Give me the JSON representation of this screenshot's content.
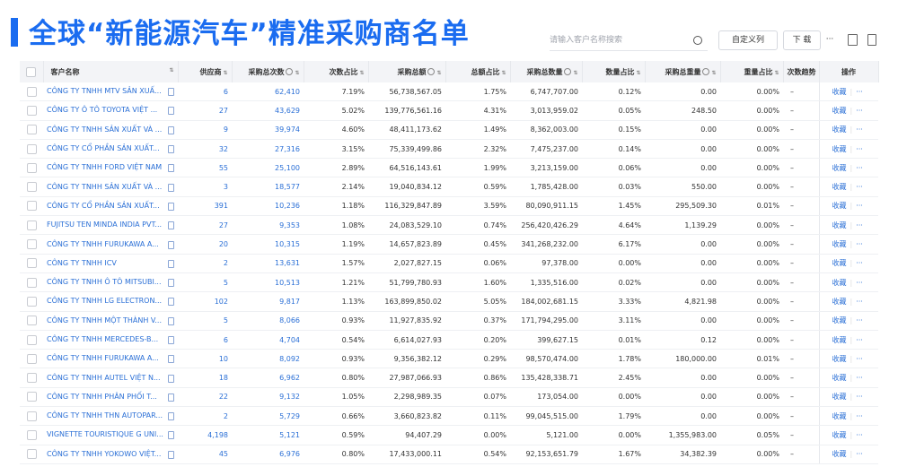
{
  "header": {
    "title": "全球“新能源汽车”精准采购商名单",
    "search_placeholder": "请输入客户名称搜索",
    "buttons": [
      "自定义列",
      "下 载",
      "···"
    ]
  },
  "table": {
    "columns": [
      "客户名称",
      "供应商",
      "采购总次数",
      "次数占比",
      "采购总额",
      "总额占比",
      "采购总数量",
      "数量占比",
      "采购总重量",
      "重量占比",
      "次数趋势",
      "操作"
    ],
    "rows": [
      [
        "CÔNG TY TNHH MTV SẢN XUẤ...",
        "6",
        "62,410",
        "7.19%",
        "56,738,567.05",
        "1.75%",
        "6,747,707.00",
        "0.12%",
        "0.00",
        "0.00%",
        "–",
        "收藏",
        "···"
      ],
      [
        "CÔNG TY Ô TÔ TOYOTA VIỆT ...",
        "27",
        "43,629",
        "5.02%",
        "139,776,561.16",
        "4.31%",
        "3,013,959.02",
        "0.05%",
        "248.50",
        "0.00%",
        "–",
        "收藏",
        "···"
      ],
      [
        "CÔNG TY TNHH SẢN XUẤT VÀ ...",
        "9",
        "39,974",
        "4.60%",
        "48,411,173.62",
        "1.49%",
        "8,362,003.00",
        "0.15%",
        "0.00",
        "0.00%",
        "–",
        "收藏",
        "···"
      ],
      [
        "CÔNG TY CỔ PHẦN SẢN XUẤT...",
        "32",
        "27,316",
        "3.15%",
        "75,339,499.86",
        "2.32%",
        "7,475,237.00",
        "0.14%",
        "0.00",
        "0.00%",
        "–",
        "收藏",
        "···"
      ],
      [
        "CÔNG TY TNHH FORD VIỆT NAM",
        "55",
        "25,100",
        "2.89%",
        "64,516,143.61",
        "1.99%",
        "3,213,159.00",
        "0.06%",
        "0.00",
        "0.00%",
        "–",
        "收藏",
        "···"
      ],
      [
        "CÔNG TY TNHH SẢN XUẤT VÀ ...",
        "3",
        "18,577",
        "2.14%",
        "19,040,834.12",
        "0.59%",
        "1,785,428.00",
        "0.03%",
        "550.00",
        "0.00%",
        "–",
        "收藏",
        "···"
      ],
      [
        "CÔNG TY CỔ PHẦN SẢN XUẤT...",
        "391",
        "10,236",
        "1.18%",
        "116,329,847.89",
        "3.59%",
        "80,090,911.15",
        "1.45%",
        "295,509.30",
        "0.01%",
        "–",
        "收藏",
        "···"
      ],
      [
        "FUJITSU TEN MINDA INDIA PVT...",
        "27",
        "9,353",
        "1.08%",
        "24,083,529.10",
        "0.74%",
        "256,420,426.29",
        "4.64%",
        "1,139.29",
        "0.00%",
        "–",
        "收藏",
        "···"
      ],
      [
        "CÔNG TY TNHH FURUKAWA A...",
        "20",
        "10,315",
        "1.19%",
        "14,657,823.89",
        "0.45%",
        "341,268,232.00",
        "6.17%",
        "0.00",
        "0.00%",
        "–",
        "收藏",
        "···"
      ],
      [
        "CÔNG TY TNHH ICV",
        "2",
        "13,631",
        "1.57%",
        "2,027,827.15",
        "0.06%",
        "97,378.00",
        "0.00%",
        "0.00",
        "0.00%",
        "–",
        "收藏",
        "···"
      ],
      [
        "CÔNG TY TNHH Ô TÔ MITSUBI...",
        "5",
        "10,513",
        "1.21%",
        "51,799,780.93",
        "1.60%",
        "1,335,516.00",
        "0.02%",
        "0.00",
        "0.00%",
        "–",
        "收藏",
        "···"
      ],
      [
        "CÔNG TY TNHH LG ELECTRON...",
        "102",
        "9,817",
        "1.13%",
        "163,899,850.02",
        "5.05%",
        "184,002,681.15",
        "3.33%",
        "4,821.98",
        "0.00%",
        "–",
        "收藏",
        "···"
      ],
      [
        "CÔNG TY TNHH MỘT THÀNH V...",
        "5",
        "8,066",
        "0.93%",
        "11,927,835.92",
        "0.37%",
        "171,794,295.00",
        "3.11%",
        "0.00",
        "0.00%",
        "–",
        "收藏",
        "···"
      ],
      [
        "CÔNG TY TNHH MERCEDES-B...",
        "6",
        "4,704",
        "0.54%",
        "6,614,027.93",
        "0.20%",
        "399,627.15",
        "0.01%",
        "0.12",
        "0.00%",
        "–",
        "收藏",
        "···"
      ],
      [
        "CÔNG TY TNHH FURUKAWA A...",
        "10",
        "8,092",
        "0.93%",
        "9,356,382.12",
        "0.29%",
        "98,570,474.00",
        "1.78%",
        "180,000.00",
        "0.01%",
        "–",
        "收藏",
        "···"
      ],
      [
        "CÔNG TY TNHH AUTEL VIỆT N...",
        "18",
        "6,962",
        "0.80%",
        "27,987,066.93",
        "0.86%",
        "135,428,338.71",
        "2.45%",
        "0.00",
        "0.00%",
        "–",
        "收藏",
        "···"
      ],
      [
        "CÔNG TY TNHH PHÂN PHỐI T...",
        "22",
        "9,132",
        "1.05%",
        "2,298,989.35",
        "0.07%",
        "173,054.00",
        "0.00%",
        "0.00",
        "0.00%",
        "–",
        "收藏",
        "···"
      ],
      [
        "CÔNG TY TNHH THN AUTOPAR...",
        "2",
        "5,729",
        "0.66%",
        "3,660,823.82",
        "0.11%",
        "99,045,515.00",
        "1.79%",
        "0.00",
        "0.00%",
        "–",
        "收藏",
        "···"
      ],
      [
        "VIGNETTE TOURISTIQUE G UNI...",
        "4,198",
        "5,121",
        "0.59%",
        "94,407.29",
        "0.00%",
        "5,121.00",
        "0.00%",
        "1,355,983.00",
        "0.05%",
        "–",
        "收藏",
        "···"
      ],
      [
        "CÔNG TY TNHH YOKOWO VIỆT...",
        "45",
        "6,976",
        "0.80%",
        "17,433,000.11",
        "0.54%",
        "92,153,651.79",
        "1.67%",
        "34,382.39",
        "0.00%",
        "–",
        "收藏",
        "···"
      ]
    ]
  }
}
